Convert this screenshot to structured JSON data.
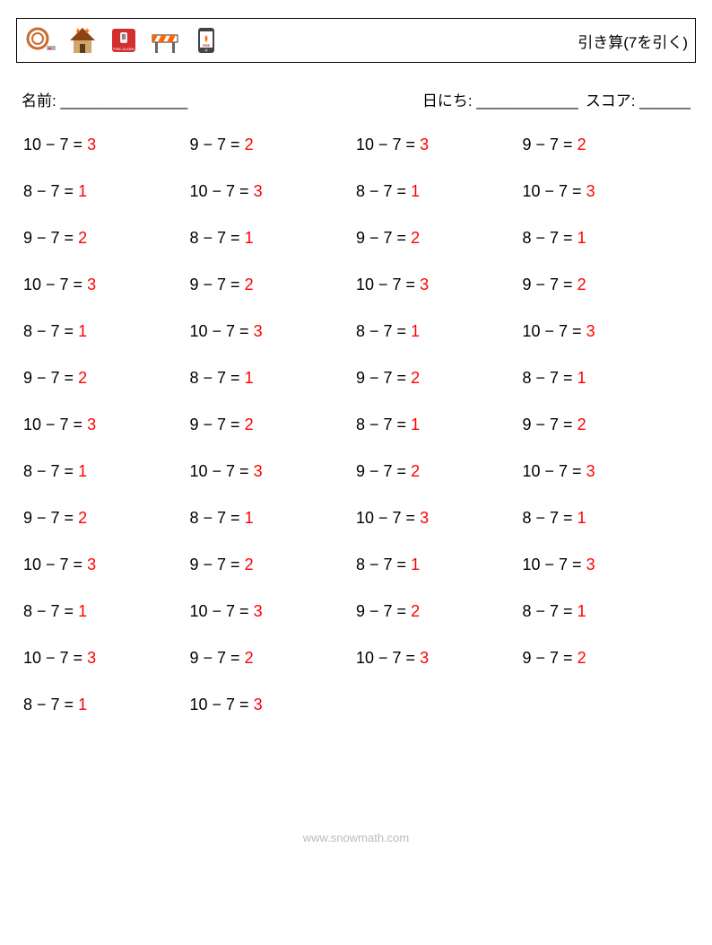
{
  "header": {
    "title": "引き算(7を引く)",
    "icons": [
      {
        "name": "fire-hose-icon"
      },
      {
        "name": "house-fire-icon"
      },
      {
        "name": "fire-alarm-icon"
      },
      {
        "name": "road-barrier-icon"
      },
      {
        "name": "phone-fire-icon"
      }
    ]
  },
  "infoRow": {
    "nameLabel": "名前: _______________",
    "dateLabel": "日にち: ____________",
    "scoreLabel": "スコア: ______"
  },
  "subtrahend": 7,
  "columns": 4,
  "colors": {
    "answer": "#ff0000",
    "text": "#000000",
    "border": "#000000",
    "background": "#ffffff",
    "footer": "#bbbbbb"
  },
  "typography": {
    "problem_fontsize": 18,
    "title_fontsize": 17,
    "info_fontsize": 17,
    "footer_fontsize": 13
  },
  "rows": [
    [
      {
        "a": 10,
        "b": 7,
        "ans": 3
      },
      {
        "a": 9,
        "b": 7,
        "ans": 2
      },
      {
        "a": 10,
        "b": 7,
        "ans": 3
      },
      {
        "a": 9,
        "b": 7,
        "ans": 2
      }
    ],
    [
      {
        "a": 8,
        "b": 7,
        "ans": 1
      },
      {
        "a": 10,
        "b": 7,
        "ans": 3
      },
      {
        "a": 8,
        "b": 7,
        "ans": 1
      },
      {
        "a": 10,
        "b": 7,
        "ans": 3
      }
    ],
    [
      {
        "a": 9,
        "b": 7,
        "ans": 2
      },
      {
        "a": 8,
        "b": 7,
        "ans": 1
      },
      {
        "a": 9,
        "b": 7,
        "ans": 2
      },
      {
        "a": 8,
        "b": 7,
        "ans": 1
      }
    ],
    [
      {
        "a": 10,
        "b": 7,
        "ans": 3
      },
      {
        "a": 9,
        "b": 7,
        "ans": 2
      },
      {
        "a": 10,
        "b": 7,
        "ans": 3
      },
      {
        "a": 9,
        "b": 7,
        "ans": 2
      }
    ],
    [
      {
        "a": 8,
        "b": 7,
        "ans": 1
      },
      {
        "a": 10,
        "b": 7,
        "ans": 3
      },
      {
        "a": 8,
        "b": 7,
        "ans": 1
      },
      {
        "a": 10,
        "b": 7,
        "ans": 3
      }
    ],
    [
      {
        "a": 9,
        "b": 7,
        "ans": 2
      },
      {
        "a": 8,
        "b": 7,
        "ans": 1
      },
      {
        "a": 9,
        "b": 7,
        "ans": 2
      },
      {
        "a": 8,
        "b": 7,
        "ans": 1
      }
    ],
    [
      {
        "a": 10,
        "b": 7,
        "ans": 3
      },
      {
        "a": 9,
        "b": 7,
        "ans": 2
      },
      {
        "a": 8,
        "b": 7,
        "ans": 1
      },
      {
        "a": 9,
        "b": 7,
        "ans": 2
      }
    ],
    [
      {
        "a": 8,
        "b": 7,
        "ans": 1
      },
      {
        "a": 10,
        "b": 7,
        "ans": 3
      },
      {
        "a": 9,
        "b": 7,
        "ans": 2
      },
      {
        "a": 10,
        "b": 7,
        "ans": 3
      }
    ],
    [
      {
        "a": 9,
        "b": 7,
        "ans": 2
      },
      {
        "a": 8,
        "b": 7,
        "ans": 1
      },
      {
        "a": 10,
        "b": 7,
        "ans": 3
      },
      {
        "a": 8,
        "b": 7,
        "ans": 1
      }
    ],
    [
      {
        "a": 10,
        "b": 7,
        "ans": 3
      },
      {
        "a": 9,
        "b": 7,
        "ans": 2
      },
      {
        "a": 8,
        "b": 7,
        "ans": 1
      },
      {
        "a": 10,
        "b": 7,
        "ans": 3
      }
    ],
    [
      {
        "a": 8,
        "b": 7,
        "ans": 1
      },
      {
        "a": 10,
        "b": 7,
        "ans": 3
      },
      {
        "a": 9,
        "b": 7,
        "ans": 2
      },
      {
        "a": 8,
        "b": 7,
        "ans": 1
      }
    ],
    [
      {
        "a": 10,
        "b": 7,
        "ans": 3
      },
      {
        "a": 9,
        "b": 7,
        "ans": 2
      },
      {
        "a": 10,
        "b": 7,
        "ans": 3
      },
      {
        "a": 9,
        "b": 7,
        "ans": 2
      }
    ],
    [
      {
        "a": 8,
        "b": 7,
        "ans": 1
      },
      {
        "a": 10,
        "b": 7,
        "ans": 3
      }
    ]
  ],
  "footer": {
    "text": "www.snowmath.com"
  }
}
